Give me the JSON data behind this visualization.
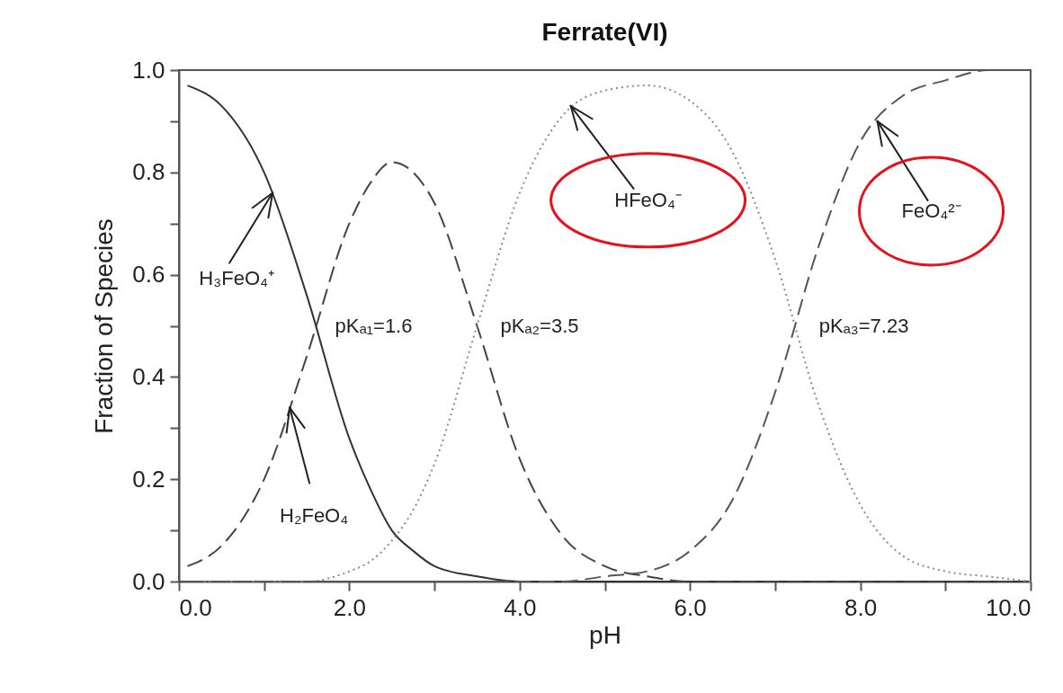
{
  "chart_data": {
    "type": "line",
    "title": "Ferrate(VI)",
    "xlabel": "pH",
    "ylabel": "Fraction of Species",
    "x": [
      0.1,
      0.5,
      1,
      1.5,
      2,
      2.25,
      2.5,
      2.75,
      3,
      3.5,
      4,
      4.5,
      5,
      5.5,
      6,
      6.5,
      7,
      7.5,
      8,
      8.5,
      9,
      9.5,
      10
    ],
    "series": [
      {
        "color": "#333333",
        "line_style": "solid",
        "values": [
          0.97,
          0.93,
          0.8,
          0.56,
          0.28,
          0.18,
          0.1,
          0.06,
          0.03,
          0.01,
          0,
          0,
          0,
          0,
          0,
          0,
          0,
          0,
          0,
          0,
          0,
          0,
          0
        ]
      },
      {
        "color": "#444444",
        "line_style": "dashed",
        "values": [
          0.03,
          0.07,
          0.2,
          0.44,
          0.7,
          0.78,
          0.82,
          0.8,
          0.74,
          0.5,
          0.24,
          0.09,
          0.03,
          0.01,
          0,
          0,
          0,
          0,
          0,
          0,
          0,
          0,
          0
        ]
      },
      {
        "color": "#8a8a8a",
        "line_style": "dotted",
        "values": [
          0,
          0,
          0,
          0,
          0.02,
          0.04,
          0.08,
          0.14,
          0.23,
          0.5,
          0.76,
          0.91,
          0.96,
          0.97,
          0.94,
          0.84,
          0.63,
          0.35,
          0.15,
          0.05,
          0.02,
          0.01,
          0
        ]
      },
      {
        "color": "#555555",
        "line_style": "dashed",
        "values": [
          0,
          0,
          0,
          0,
          0,
          0,
          0,
          0,
          0,
          0,
          0,
          0,
          0.01,
          0.02,
          0.06,
          0.16,
          0.37,
          0.65,
          0.86,
          0.95,
          0.98,
          1.0,
          1.0
        ]
      }
    ],
    "xlim": [
      0,
      10
    ],
    "xticks": [
      {
        "value": 0,
        "label": "0.0"
      },
      {
        "value": 1,
        "label": null
      },
      {
        "value": 2,
        "label": "2.0"
      },
      {
        "value": 3,
        "label": null
      },
      {
        "value": 4,
        "label": "4.0"
      },
      {
        "value": 5,
        "label": null
      },
      {
        "value": 6,
        "label": "6.0"
      },
      {
        "value": 7,
        "label": null
      },
      {
        "value": 8,
        "label": "8.0"
      },
      {
        "value": 9,
        "label": null
      },
      {
        "value": 10,
        "label": "10.0"
      }
    ],
    "ylim": [
      0,
      1
    ],
    "yticks": [
      {
        "value": 0,
        "label": "0.0"
      },
      {
        "value": 0.1,
        "label": null
      },
      {
        "value": 0.2,
        "label": "0.2"
      },
      {
        "value": 0.3,
        "label": null
      },
      {
        "value": 0.4,
        "label": "0.4"
      },
      {
        "value": 0.5,
        "label": null
      },
      {
        "value": 0.6,
        "label": "0.6"
      },
      {
        "value": 0.7,
        "label": null
      },
      {
        "value": 0.8,
        "label": "0.8"
      },
      {
        "value": 0.9,
        "label": null
      },
      {
        "value": 1,
        "label": "1.0"
      }
    ],
    "annotations": [
      {
        "text": "H₃FeO₄⁺",
        "x": 1.1,
        "y": 0.76
      },
      {
        "text": "H₂FeO₄",
        "x": 1.3,
        "y": 0.34
      },
      {
        "text": "HFeO₄⁻",
        "x": 4.6,
        "y": 0.93
      },
      {
        "text": "FeO₄²⁻",
        "x": 8.2,
        "y": 0.9
      },
      {
        "text": "pKₐ₁=1.6",
        "x": 1.6,
        "y": 0.5
      },
      {
        "text": "pKₐ₂=3.5",
        "x": 3.5,
        "y": 0.5
      },
      {
        "text": "pKₐ₃=7.23",
        "x": 7.23,
        "y": 0.5
      }
    ],
    "grid": false,
    "marker": "none"
  }
}
